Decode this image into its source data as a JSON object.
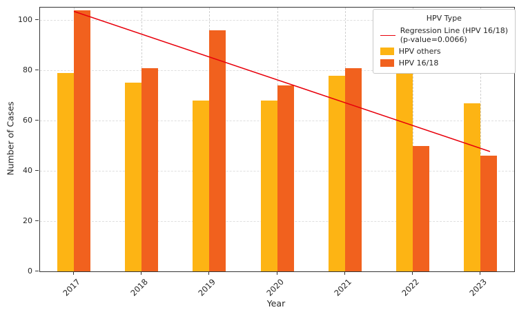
{
  "chart_data": {
    "type": "bar",
    "title": "",
    "xlabel": "Year",
    "ylabel": "Number of Cases",
    "categories": [
      "2017",
      "2018",
      "2019",
      "2020",
      "2021",
      "2022",
      "2023"
    ],
    "series": [
      {
        "name": "HPV others",
        "color": "#FDB414",
        "values": [
          79,
          75,
          68,
          68,
          78,
          80,
          67
        ]
      },
      {
        "name": "HPV 16/18",
        "color": "#F1611E",
        "values": [
          104,
          81,
          96,
          74,
          81,
          50,
          46
        ]
      }
    ],
    "regression": {
      "name": "Regression Line (HPV 16/18)",
      "p_value_label": "(p-value=0.0066)",
      "color": "#E8000B",
      "start_value": 103.5,
      "end_value": 49
    },
    "ylim": [
      0,
      105
    ],
    "yticks": [
      0,
      20,
      40,
      60,
      80,
      100
    ],
    "grid": "dashed-both-axes",
    "legend": {
      "title": "HPV Type",
      "position": "top-right"
    }
  }
}
